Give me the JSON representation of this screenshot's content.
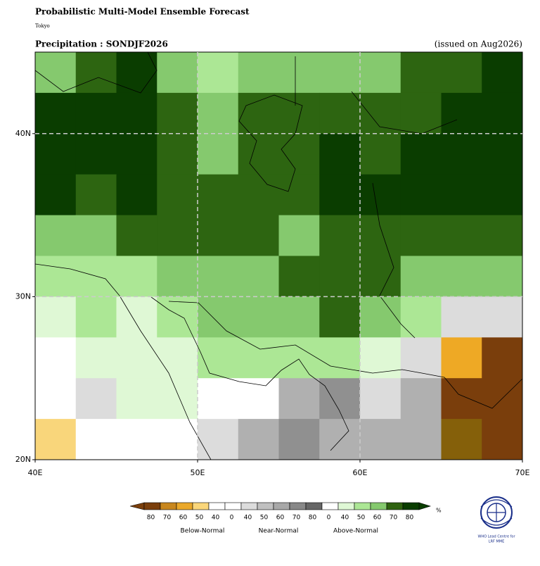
{
  "header": {
    "title": "Probabilistic Multi-Model Ensemble Forecast",
    "subtitle": "Tokyo",
    "left_label": "Precipitation : SONDJF2026",
    "right_label": "(issued on Aug2026)"
  },
  "map": {
    "xlim": [
      40,
      70
    ],
    "ylim": [
      20,
      45
    ],
    "gridlines": true,
    "xticks": [
      {
        "value": 40,
        "label": "40E"
      },
      {
        "value": 50,
        "label": "50E"
      },
      {
        "value": 60,
        "label": "60E"
      },
      {
        "value": 70,
        "label": "70E"
      }
    ],
    "yticks": [
      {
        "value": 20,
        "label": "20N"
      },
      {
        "value": 30,
        "label": "30N"
      },
      {
        "value": 40,
        "label": "40N"
      }
    ],
    "cells": [
      [
        "#85c96e",
        "#2d6511",
        "#0a3d00",
        "#85c96e",
        "#ace795",
        "#85c96e",
        "#85c96e",
        "#85c96e",
        "#85c96e",
        "#2d6511",
        "#2d6511",
        "#0a3d00"
      ],
      [
        "#0a3d00",
        "#0a3d00",
        "#0a3d00",
        "#2d6511",
        "#85c96e",
        "#2d6511",
        "#2d6511",
        "#2d6511",
        "#2d6511",
        "#2d6511",
        "#0a3d00",
        "#0a3d00"
      ],
      [
        "#0a3d00",
        "#0a3d00",
        "#0a3d00",
        "#2d6511",
        "#85c96e",
        "#2d6511",
        "#2d6511",
        "#0a3d00",
        "#2d6511",
        "#0a3d00",
        "#0a3d00",
        "#0a3d00"
      ],
      [
        "#0a3d00",
        "#2d6511",
        "#0a3d00",
        "#2d6511",
        "#2d6511",
        "#2d6511",
        "#2d6511",
        "#0a3d00",
        "#0a3d00",
        "#0a3d00",
        "#0a3d00",
        "#0a3d00"
      ],
      [
        "#85c96e",
        "#85c96e",
        "#2d6511",
        "#2d6511",
        "#2d6511",
        "#2d6511",
        "#85c96e",
        "#2d6511",
        "#2d6511",
        "#2d6511",
        "#2d6511",
        "#2d6511"
      ],
      [
        "#ace795",
        "#ace795",
        "#ace795",
        "#85c96e",
        "#85c96e",
        "#85c96e",
        "#2d6511",
        "#2d6511",
        "#2d6511",
        "#85c96e",
        "#85c96e",
        "#85c96e"
      ],
      [
        "#dff8d5",
        "#ace795",
        "#dff8d5",
        "#ace795",
        "#85c96e",
        "#85c96e",
        "#85c96e",
        "#2d6511",
        "#85c96e",
        "#ace795",
        "#dcdcdc",
        "#dcdcdc"
      ],
      [
        "#ffffff",
        "#dff8d5",
        "#dff8d5",
        "#dff8d5",
        "#ace795",
        "#ace795",
        "#ace795",
        "#ace795",
        "#dff8d5",
        "#dcdcdc",
        "#eea925",
        "#7a3e0c"
      ],
      [
        "#ffffff",
        "#dcdcdc",
        "#dff8d5",
        "#dff8d5",
        "#ffffff",
        "#ffffff",
        "#b0b0b0",
        "#909090",
        "#dcdcdc",
        "#b0b0b0",
        "#7a3e0c",
        "#7a3e0c"
      ],
      [
        "#f9d67b",
        "#ffffff",
        "#ffffff",
        "#ffffff",
        "#dcdcdc",
        "#b0b0b0",
        "#909090",
        "#b0b0b0",
        "#b0b0b0",
        "#b0b0b0",
        "#85600a",
        "#7a3e0c"
      ]
    ]
  },
  "legend": {
    "unit": "%",
    "entries": [
      {
        "value": 80,
        "color": "#7b3f0b"
      },
      {
        "value": 70,
        "color": "#c8871e"
      },
      {
        "value": 60,
        "color": "#eaa82a"
      },
      {
        "value": 50,
        "color": "#fad67a"
      },
      {
        "value": 40,
        "color": "#ffffff"
      },
      {
        "value": 0,
        "color": "#ffffff"
      },
      {
        "value": 40,
        "color": "#dcdcdc"
      },
      {
        "value": 50,
        "color": "#c0c0c0"
      },
      {
        "value": 60,
        "color": "#a8a8a8"
      },
      {
        "value": 70,
        "color": "#888888"
      },
      {
        "value": 80,
        "color": "#666666"
      },
      {
        "value": 0,
        "color": "#ffffff"
      },
      {
        "value": 40,
        "color": "#dff8d5"
      },
      {
        "value": 50,
        "color": "#ace795"
      },
      {
        "value": 60,
        "color": "#85c96e"
      },
      {
        "value": 70,
        "color": "#2f6310"
      },
      {
        "value": 80,
        "color": "#0a3d00"
      }
    ],
    "groups": [
      "Below-Normal",
      "Near-Normal",
      "Above-Normal"
    ]
  },
  "logo": [
    "WHO Lead Centre for",
    "LRF MME"
  ]
}
